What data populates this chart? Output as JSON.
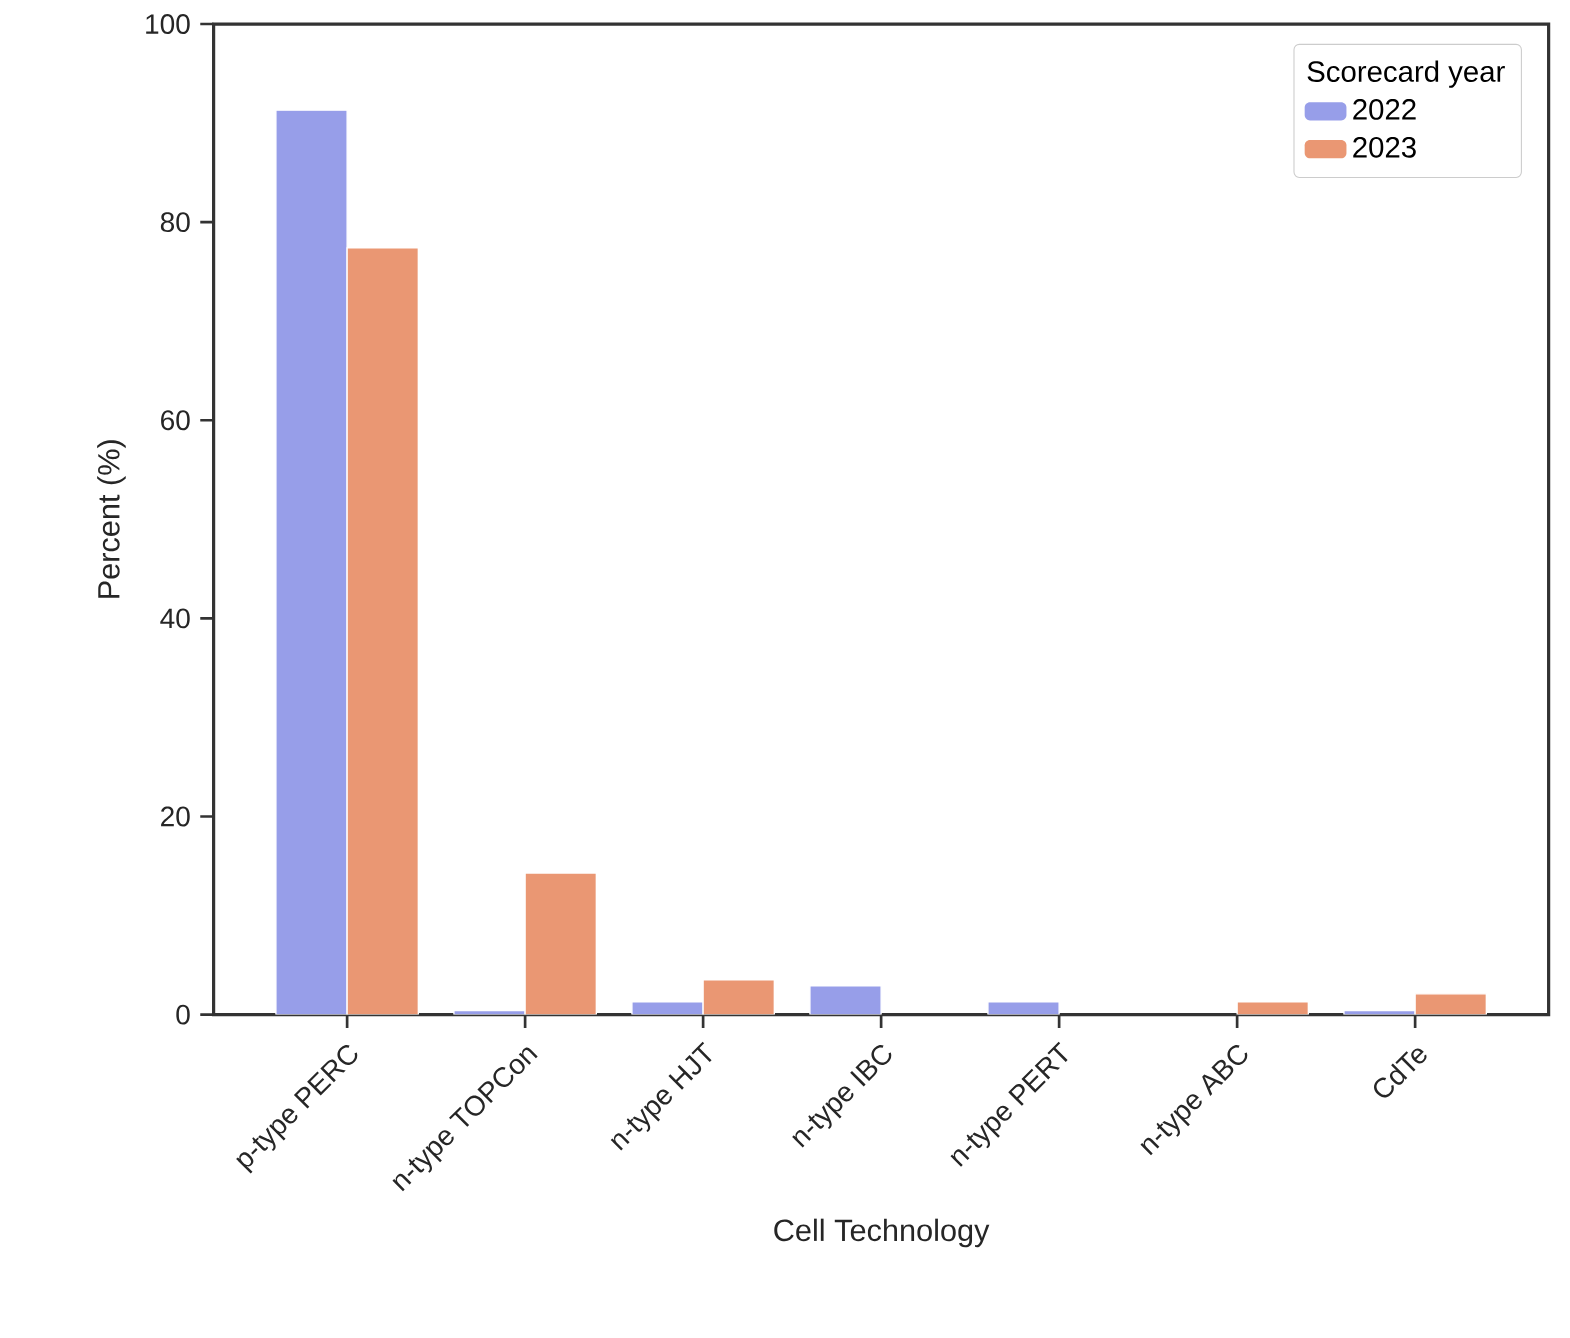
{
  "chart_data": {
    "type": "bar",
    "xlabel": "Cell Technology",
    "ylabel": "Percent (%)",
    "legend_title": "Scorecard year",
    "categories": [
      "p-type PERC",
      "n-type TOPCon",
      "n-type HJT",
      "n-type IBC",
      "n-type PERT",
      "n-type ABC",
      "CdTe"
    ],
    "series": [
      {
        "name": "2022",
        "color": "#979ee9",
        "values": [
          91.3,
          0.4,
          1.3,
          2.9,
          1.3,
          null,
          0.4
        ]
      },
      {
        "name": "2023",
        "color": "#ea9773",
        "values": [
          77.4,
          14.3,
          3.5,
          null,
          null,
          1.3,
          2.1
        ]
      }
    ],
    "ylim": [
      0,
      100
    ],
    "yticks": [
      0,
      20,
      40,
      60,
      80,
      100
    ],
    "legend": "top right",
    "grid": false
  }
}
